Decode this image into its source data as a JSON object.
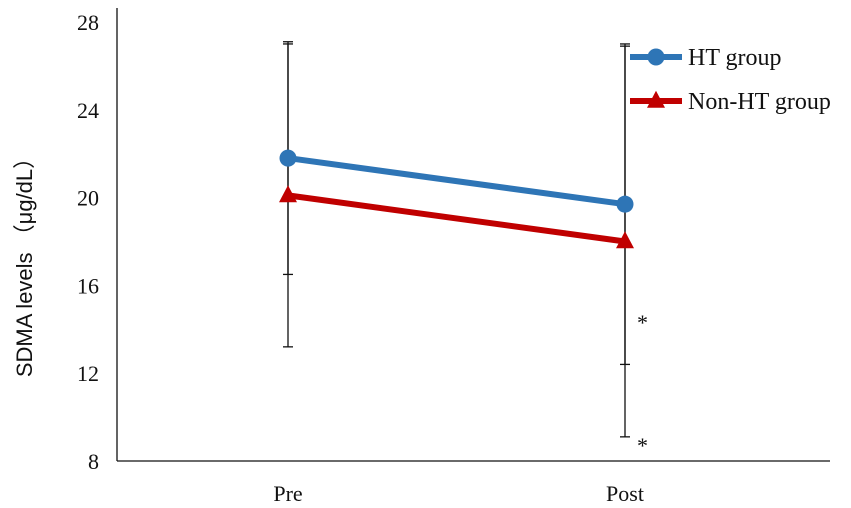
{
  "chart_data": {
    "type": "line",
    "title": "",
    "xlabel": "",
    "ylabel": "SDMA levels （μg/dL）",
    "categories": [
      "Pre",
      "Post"
    ],
    "ylim": [
      8,
      28
    ],
    "yticks": [
      "8",
      "12",
      "16",
      "20",
      "24",
      "28"
    ],
    "grid": false,
    "legend_position": "top-right",
    "series": [
      {
        "name": "HT group",
        "values": [
          21.8,
          19.7
        ],
        "error": [
          5.3,
          7.3
        ],
        "color": "#2e75b6",
        "marker": "circle"
      },
      {
        "name": "Non-HT group",
        "values": [
          20.1,
          18.0
        ],
        "error": [
          6.9,
          8.9
        ],
        "color": "#c00000",
        "marker": "triangle"
      }
    ],
    "annotations": [
      {
        "text": "*",
        "category": "Post",
        "y": 14.6
      },
      {
        "text": "*",
        "category": "Post",
        "y": 9.0
      }
    ]
  }
}
